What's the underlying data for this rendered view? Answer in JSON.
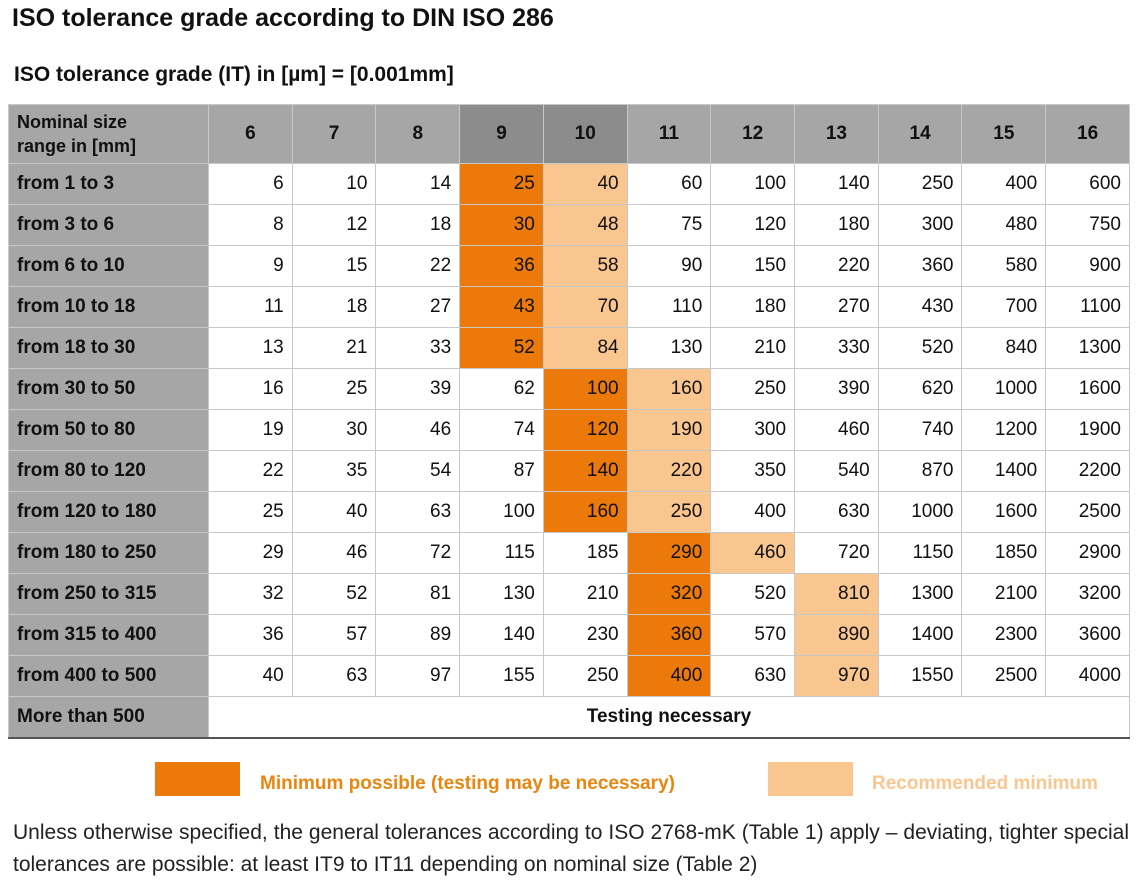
{
  "title": "ISO tolerance grade according to DIN ISO 286",
  "subtitle": "ISO tolerance grade (IT) in [µm] = [0.001mm]",
  "table": {
    "header": [
      "Nominal size range in [mm]",
      "6",
      "7",
      "8",
      "9",
      "10",
      "11",
      "12",
      "13",
      "14",
      "15",
      "16"
    ],
    "header_dark": [
      "9",
      "10"
    ],
    "rows": [
      {
        "label": "from 1 to 3",
        "values": [
          6,
          10,
          14,
          25,
          40,
          60,
          100,
          140,
          250,
          400,
          600
        ],
        "minimum": "9",
        "recommended": "10"
      },
      {
        "label": "from 3 to 6",
        "values": [
          8,
          12,
          18,
          30,
          48,
          75,
          120,
          180,
          300,
          480,
          750
        ],
        "minimum": "9",
        "recommended": "10"
      },
      {
        "label": "from 6 to 10",
        "values": [
          9,
          15,
          22,
          36,
          58,
          90,
          150,
          220,
          360,
          580,
          900
        ],
        "minimum": "9",
        "recommended": "10"
      },
      {
        "label": "from 10 to 18",
        "values": [
          11,
          18,
          27,
          43,
          70,
          110,
          180,
          270,
          430,
          700,
          1100
        ],
        "minimum": "9",
        "recommended": "10"
      },
      {
        "label": "from 18 to 30",
        "values": [
          13,
          21,
          33,
          52,
          84,
          130,
          210,
          330,
          520,
          840,
          1300
        ],
        "minimum": "9",
        "recommended": "10"
      },
      {
        "label": "from 30 to 50",
        "values": [
          16,
          25,
          39,
          62,
          100,
          160,
          250,
          390,
          620,
          1000,
          1600
        ],
        "minimum": "10",
        "recommended": "11"
      },
      {
        "label": "from 50 to 80",
        "values": [
          19,
          30,
          46,
          74,
          120,
          190,
          300,
          460,
          740,
          1200,
          1900
        ],
        "minimum": "10",
        "recommended": "11"
      },
      {
        "label": "from 80 to 120",
        "values": [
          22,
          35,
          54,
          87,
          140,
          220,
          350,
          540,
          870,
          1400,
          2200
        ],
        "minimum": "10",
        "recommended": "11"
      },
      {
        "label": "from 120 to 180",
        "values": [
          25,
          40,
          63,
          100,
          160,
          250,
          400,
          630,
          1000,
          1600,
          2500
        ],
        "minimum": "10",
        "recommended": "11"
      },
      {
        "label": "from 180 to 250",
        "values": [
          29,
          46,
          72,
          115,
          185,
          290,
          460,
          720,
          1150,
          1850,
          2900
        ],
        "minimum": "11",
        "recommended": "12"
      },
      {
        "label": "from 250 to 315",
        "values": [
          32,
          52,
          81,
          130,
          210,
          320,
          520,
          810,
          1300,
          2100,
          3200
        ],
        "minimum": "11",
        "recommended": "13"
      },
      {
        "label": "from 315 to 400",
        "values": [
          36,
          57,
          89,
          140,
          230,
          360,
          570,
          890,
          1400,
          2300,
          3600
        ],
        "minimum": "11",
        "recommended": "13"
      },
      {
        "label": "from 400 to 500",
        "values": [
          40,
          63,
          97,
          155,
          250,
          400,
          630,
          970,
          1550,
          2500,
          4000
        ],
        "minimum": "11",
        "recommended": "13"
      }
    ],
    "footer_row": {
      "label": "More than 500",
      "text": "Testing necessary"
    }
  },
  "legend": [
    {
      "label": "Minimum possible (testing may be necessary)",
      "color": "#ec7a0a",
      "text_color": "#e8860f"
    },
    {
      "label": "Recommended minimum",
      "color": "#f9c690",
      "text_color": "#f9c690"
    }
  ],
  "footnote": "Unless otherwise specified, the general tolerances according to ISO 2768-mK (Table 1) apply – deviating, tighter special tolerances are possible: at least IT9 to IT11 depending on nominal size (Table 2)"
}
